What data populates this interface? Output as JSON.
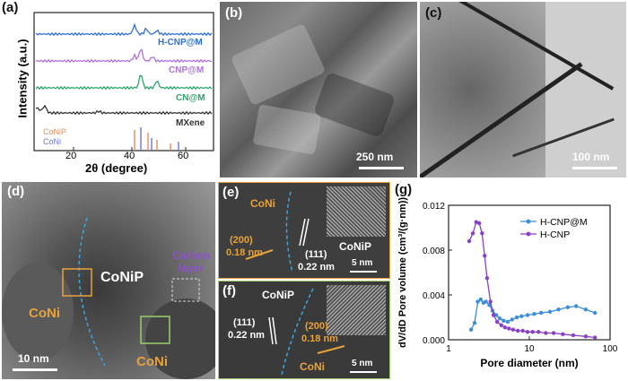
{
  "panels": {
    "a": {
      "label": "(a)",
      "ylabel": "Intensity (a.u.)",
      "xlabel": "2θ (degree)",
      "xticks": [
        "20",
        "40",
        "60"
      ],
      "traces": [
        {
          "name": "H-CNP@M",
          "color": "#2f6fd6"
        },
        {
          "name": "CNP@M",
          "color": "#b070e0"
        },
        {
          "name": "CN@M",
          "color": "#2aa86a"
        },
        {
          "name": "MXene",
          "color": "#333333"
        }
      ],
      "refs": [
        {
          "name": "CoNiP",
          "color": "#e88a5c"
        },
        {
          "name": "CoNi",
          "color": "#6a78d6"
        }
      ]
    },
    "b": {
      "label": "(b)",
      "scale": "250 nm"
    },
    "c": {
      "label": "(c)",
      "scale": "100 nm"
    },
    "d": {
      "label": "(d)",
      "scale": "10 nm",
      "conip": "CoNiP",
      "coni_left": "CoNi",
      "coni_right": "CoNi",
      "carbon": "Carbon layer"
    },
    "e": {
      "label": "(e)",
      "coni": "CoNi",
      "plane1": "(200)",
      "d1": "0.18 nm",
      "plane2": "(111)",
      "d2": "0.22 nm",
      "conip": "CoNiP",
      "scale": "5 nm"
    },
    "f": {
      "label": "(f)",
      "conip": "CoNiP",
      "plane1": "(111)",
      "d1": "0.22 nm",
      "plane2": "(200)",
      "d2": "0.18 nm",
      "coni": "CoNi",
      "scale": "5 nm"
    },
    "g": {
      "label": "(g)"
    }
  },
  "chart_data": {
    "type": "line",
    "xlabel": "Pore diameter (nm)",
    "ylabel": "dV/dD Pore volume (cm³/(g·nm))",
    "xscale": "log",
    "xlim": [
      1,
      100
    ],
    "ylim": [
      0,
      0.012
    ],
    "xticks": [
      "1",
      "10",
      "100"
    ],
    "yticks": [
      "0.000",
      "0.004",
      "0.008",
      "0.012"
    ],
    "legend_position": "top-right",
    "series": [
      {
        "name": "H-CNP@M",
        "color": "#3a8fd8",
        "x": [
          1.9,
          2.1,
          2.3,
          2.5,
          2.7,
          2.9,
          3.2,
          3.5,
          3.9,
          4.3,
          4.8,
          5.4,
          6.1,
          7.0,
          8.0,
          9.5,
          11.5,
          14,
          18,
          23,
          30,
          38,
          50,
          65
        ],
        "y": [
          0.0009,
          0.0015,
          0.0034,
          0.0036,
          0.0033,
          0.0034,
          0.0031,
          0.0026,
          0.0022,
          0.0019,
          0.0017,
          0.0016,
          0.0018,
          0.002,
          0.0021,
          0.0022,
          0.0023,
          0.0024,
          0.0025,
          0.0027,
          0.0029,
          0.003,
          0.0027,
          0.0024
        ]
      },
      {
        "name": "H-CNP",
        "color": "#8a3fc8",
        "x": [
          1.8,
          2.0,
          2.2,
          2.4,
          2.6,
          2.8,
          3.0,
          3.3,
          3.6,
          4.0,
          4.5,
          5.0,
          5.6,
          6.3,
          7.2,
          8.3,
          9.5,
          11,
          13,
          16,
          20,
          26,
          35,
          50,
          65
        ],
        "y": [
          0.0088,
          0.0095,
          0.0105,
          0.0104,
          0.0095,
          0.0075,
          0.0055,
          0.0034,
          0.0022,
          0.0016,
          0.0013,
          0.0011,
          0.001,
          0.0009,
          0.0008,
          0.0008,
          0.0007,
          0.0007,
          0.0007,
          0.0006,
          0.0006,
          0.0005,
          0.0004,
          0.0003,
          0.0002
        ]
      }
    ]
  }
}
